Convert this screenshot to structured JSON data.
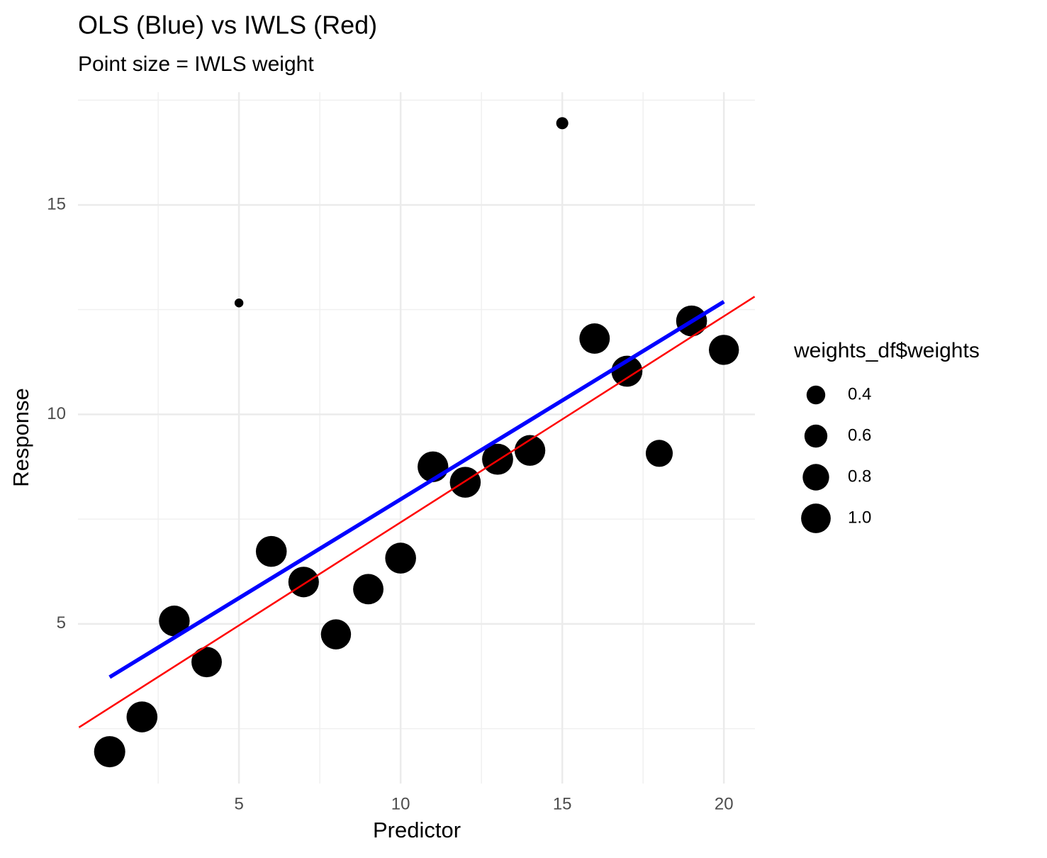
{
  "chart_data": {
    "type": "scatter",
    "title": "OLS (Blue) vs IWLS (Red)",
    "subtitle": "Point size = IWLS weight",
    "x_label": "Predictor",
    "y_label": "Response",
    "x": [
      1,
      2,
      3,
      4,
      5,
      6,
      7,
      8,
      9,
      10,
      11,
      12,
      13,
      14,
      15,
      16,
      17,
      18,
      19,
      20
    ],
    "y": [
      1.95,
      2.78,
      5.07,
      4.09,
      12.66,
      6.73,
      6.0,
      4.75,
      5.83,
      6.57,
      8.75,
      8.38,
      8.93,
      9.14,
      16.95,
      11.81,
      11.03,
      9.07,
      12.23,
      11.54
    ],
    "weights": [
      1.0,
      0.98,
      0.97,
      0.95,
      0.08,
      0.98,
      0.96,
      0.93,
      0.95,
      0.98,
      0.97,
      0.98,
      0.99,
      0.97,
      0.15,
      0.95,
      0.99,
      0.75,
      0.98,
      0.93
    ],
    "color": "#000000",
    "lines": [
      {
        "color": "#0000ff",
        "x": [
          1,
          20
        ],
        "values": [
          3.73,
          12.69
        ]
      },
      {
        "color": "#ff0000",
        "x": [
          0.05,
          20.95
        ],
        "values": [
          2.53,
          12.81
        ]
      }
    ],
    "xlim": [
      0.02,
      20.96
    ],
    "ylim": [
      1.19,
      17.69
    ],
    "xticks": [
      5,
      10,
      15,
      20
    ],
    "yticks": [
      5,
      10,
      15
    ],
    "x_minor_ticks": [
      2.5,
      7.5,
      12.5,
      17.5
    ],
    "y_minor_ticks": [
      2.5,
      7.5,
      12.5,
      17.5
    ],
    "grid": true,
    "size_legend": {
      "title": "weights_df$weights",
      "breaks": [
        0.4,
        0.6,
        0.8,
        {
          "value": 1,
          "label": "1.0"
        }
      ]
    }
  }
}
